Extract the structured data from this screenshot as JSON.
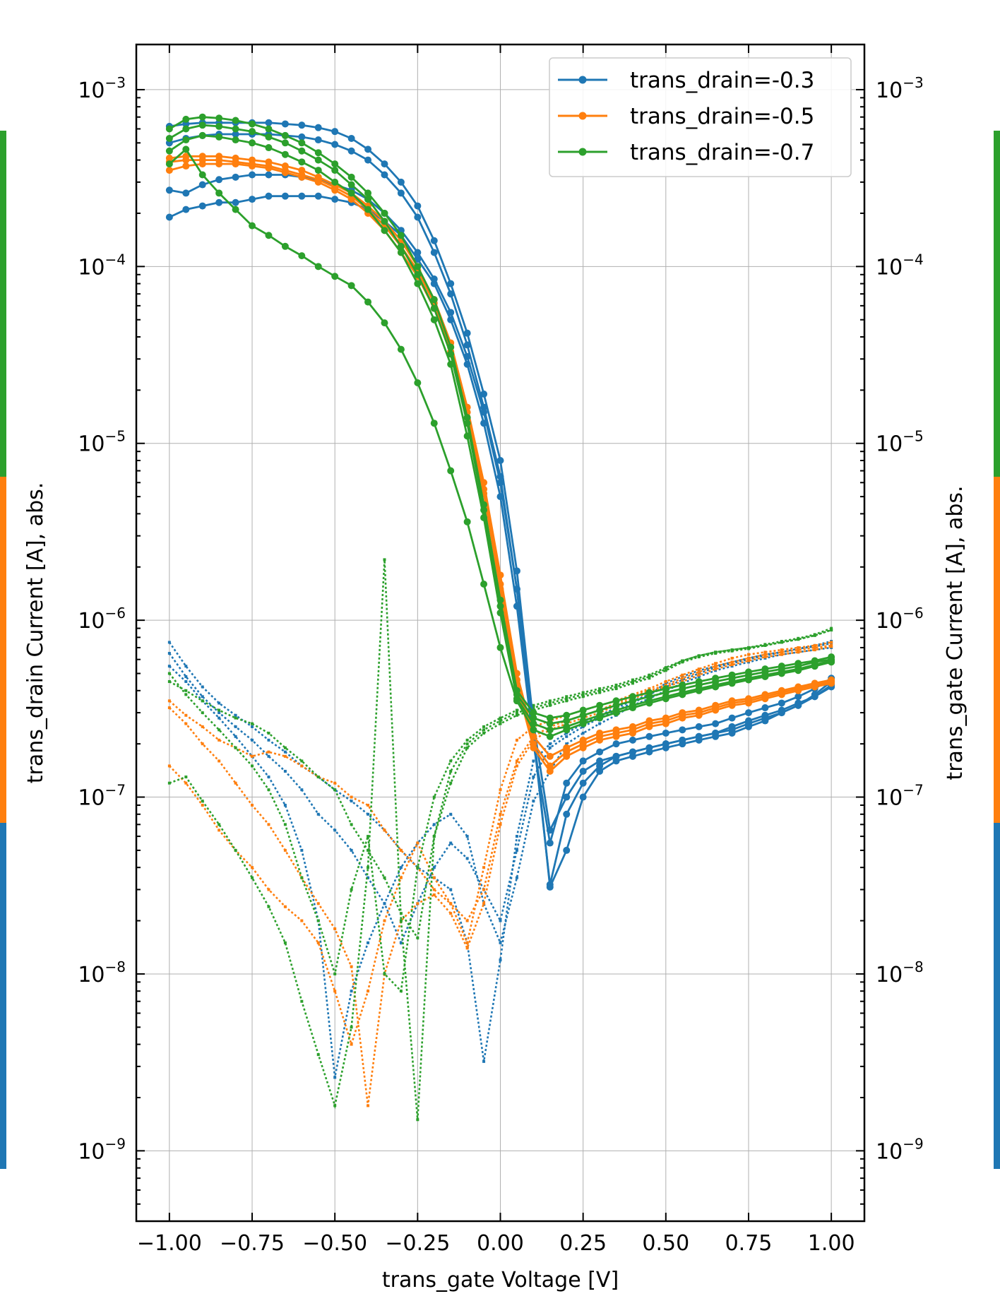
{
  "chart_data": {
    "type": "line",
    "title": "",
    "xlabel": "trans_gate Voltage [V]",
    "ylabel": "trans_drain Current [A], abs.",
    "ylabel_right": "trans_gate Current [A], abs.",
    "xlim": [
      -1.1,
      1.1
    ],
    "ylim": [
      4e-10,
      0.0018
    ],
    "yscale": "log",
    "grid": true,
    "legend_position": "top-right",
    "x_ticks": [
      "−1.00",
      "−0.75",
      "−0.50",
      "−0.25",
      "0.00",
      "0.25",
      "0.50",
      "0.75",
      "1.00"
    ],
    "x_tick_values": [
      -1.0,
      -0.75,
      -0.5,
      -0.25,
      0.0,
      0.25,
      0.5,
      0.75,
      1.0
    ],
    "y_tick_exponents": [
      "−9",
      "−8",
      "−7",
      "−6",
      "−5",
      "−4",
      "−3"
    ],
    "y_tick_values": [
      1e-09,
      1e-08,
      1e-07,
      1e-06,
      1e-05,
      0.0001,
      0.001
    ],
    "y_tick_base": "10",
    "x_sweep": [
      -1.0,
      -0.95,
      -0.9,
      -0.85,
      -0.8,
      -0.75,
      -0.7,
      -0.65,
      -0.6,
      -0.55,
      -0.5,
      -0.45,
      -0.4,
      -0.35,
      -0.3,
      -0.25,
      -0.2,
      -0.15,
      -0.1,
      -0.05,
      0.0,
      0.05,
      0.1,
      0.15,
      0.2,
      0.25,
      0.3,
      0.35,
      0.4,
      0.45,
      0.5,
      0.55,
      0.6,
      0.65,
      0.7,
      0.75,
      0.8,
      0.85,
      0.9,
      0.95,
      1.0
    ],
    "series": [
      {
        "name": "trans_drain=-0.3",
        "color": "#1f77b4",
        "drain_curves": [
          [
            0.00062,
            0.00064,
            0.00065,
            0.00065,
            0.00065,
            0.00065,
            0.00065,
            0.00064,
            0.00063,
            0.00061,
            0.00058,
            0.00053,
            0.00046,
            0.00038,
            0.0003,
            0.00022,
            0.00014,
            8e-05,
            4.2e-05,
            1.9e-05,
            8e-06,
            1.9e-06,
            2.6e-07,
            6.5e-08,
            1e-07,
            1.4e-07,
            1.6e-07,
            1.7e-07,
            1.8e-07,
            1.9e-07,
            2e-07,
            2.1e-07,
            2.2e-07,
            2.3e-07,
            2.5e-07,
            2.7e-07,
            2.9e-07,
            3.1e-07,
            3.4e-07,
            3.7e-07,
            4.2e-07
          ],
          [
            0.0005,
            0.00053,
            0.00055,
            0.00056,
            0.00056,
            0.00056,
            0.00056,
            0.00055,
            0.00054,
            0.00052,
            0.00049,
            0.00045,
            0.0004,
            0.00033,
            0.00026,
            0.00019,
            0.00012,
            7e-05,
            3.6e-05,
            1.6e-05,
            6.5e-06,
            1.5e-06,
            2.2e-07,
            3.2e-08,
            8e-08,
            1.2e-07,
            1.5e-07,
            1.7e-07,
            1.8e-07,
            1.9e-07,
            2e-07,
            2.1e-07,
            2.2e-07,
            2.3e-07,
            2.4e-07,
            2.6e-07,
            2.8e-07,
            3e-07,
            3.3e-07,
            3.7e-07,
            4.3e-07
          ],
          [
            0.00027,
            0.00026,
            0.00029,
            0.00031,
            0.00032,
            0.00033,
            0.00033,
            0.00033,
            0.00032,
            0.00031,
            0.00029,
            0.00027,
            0.00024,
            0.0002,
            0.00016,
            0.00012,
            8.5e-05,
            5.5e-05,
            3.1e-05,
            1.5e-05,
            6e-06,
            1.5e-06,
            2.4e-07,
            3.1e-08,
            5e-08,
            1e-07,
            1.4e-07,
            1.6e-07,
            1.7e-07,
            1.8e-07,
            1.9e-07,
            2e-07,
            2.1e-07,
            2.2e-07,
            2.3e-07,
            2.5e-07,
            2.7e-07,
            3e-07,
            3.3e-07,
            3.8e-07,
            4.5e-07
          ],
          [
            0.00019,
            0.00021,
            0.00022,
            0.00023,
            0.00023,
            0.00024,
            0.00025,
            0.00025,
            0.00025,
            0.00025,
            0.00024,
            0.00023,
            0.00021,
            0.00018,
            0.00015,
            0.00011,
            8e-05,
            5e-05,
            2.8e-05,
            1.3e-05,
            5e-06,
            1.2e-06,
            2e-07,
            5.5e-08,
            1.2e-07,
            1.6e-07,
            1.8e-07,
            2e-07,
            2.1e-07,
            2.2e-07,
            2.3e-07,
            2.4e-07,
            2.5e-07,
            2.6e-07,
            2.8e-07,
            3e-07,
            3.2e-07,
            3.4e-07,
            3.7e-07,
            4.1e-07,
            4.7e-07
          ]
        ],
        "gate_curves": [
          [
            7.5e-07,
            5.5e-07,
            4.2e-07,
            3.4e-07,
            2.9e-07,
            2.5e-07,
            2.1e-07,
            1.8e-07,
            1.5e-07,
            1.3e-07,
            1.1e-07,
            9.5e-08,
            8e-08,
            6.5e-08,
            5e-08,
            4e-08,
            3.5e-08,
            3e-08,
            1.5e-08,
            3.2e-09,
            1.2e-08,
            6e-08,
            1.6e-07,
            2e-07,
            2.3e-07,
            2.6e-07,
            2.9e-07,
            3.2e-07,
            3.5e-07,
            3.8e-07,
            4.2e-07,
            4.6e-07,
            5e-07,
            5.4e-07,
            5.7e-07,
            6e-07,
            6.3e-07,
            6.6e-07,
            6.9e-07,
            7.2e-07,
            7.6e-07
          ],
          [
            6.5e-07,
            4.8e-07,
            3.7e-07,
            3e-07,
            2.5e-07,
            2.1e-07,
            1.7e-07,
            1.4e-07,
            1.1e-07,
            8e-08,
            6.5e-08,
            5e-08,
            3.5e-08,
            2.5e-08,
            1.5e-08,
            2.5e-08,
            4e-08,
            5.5e-08,
            4.5e-08,
            3e-08,
            2e-08,
            5e-08,
            1.3e-07,
            1.9e-07,
            2.2e-07,
            2.5e-07,
            2.8e-07,
            3.1e-07,
            3.4e-07,
            3.8e-07,
            4.4e-07,
            4.8e-07,
            5.2e-07,
            5.5e-07,
            5.8e-07,
            6.1e-07,
            6.4e-07,
            6.6e-07,
            6.9e-07,
            7.1e-07,
            7.4e-07
          ],
          [
            5.5e-07,
            4.5e-07,
            3.5e-07,
            2.8e-07,
            2.2e-07,
            1.7e-07,
            1.3e-07,
            9e-08,
            5e-08,
            2e-08,
            2.6e-09,
            8e-09,
            1.5e-08,
            2.5e-08,
            4e-08,
            5.5e-08,
            7e-08,
            8e-08,
            6e-08,
            2.5e-08,
            1.5e-08,
            3.5e-08,
            9.5e-08,
            1.4e-07,
            2e-07,
            2.3e-07,
            2.6e-07,
            2.9e-07,
            3.3e-07,
            3.6e-07,
            4e-07,
            4.4e-07,
            4.8e-07,
            5.2e-07,
            5.5e-07,
            5.8e-07,
            6.1e-07,
            6.4e-07,
            6.6e-07,
            6.8e-07,
            7e-07
          ]
        ]
      },
      {
        "name": "trans_drain=-0.5",
        "color": "#ff7f0e",
        "drain_curves": [
          [
            0.00041,
            0.00042,
            0.00042,
            0.00042,
            0.00041,
            0.0004,
            0.00039,
            0.00037,
            0.00035,
            0.00032,
            0.00029,
            0.00026,
            0.00022,
            0.00018,
            0.00014,
            0.0001,
            6.5e-05,
            3.7e-05,
            1.6e-05,
            6e-06,
            1.8e-06,
            5e-07,
            2.2e-07,
            1.7e-07,
            1.9e-07,
            2.1e-07,
            2.3e-07,
            2.4e-07,
            2.5e-07,
            2.7e-07,
            2.8e-07,
            3e-07,
            3.1e-07,
            3.3e-07,
            3.5e-07,
            3.6e-07,
            3.8e-07,
            4e-07,
            4.2e-07,
            4.4e-07,
            4.6e-07
          ],
          [
            0.00039,
            0.0004,
            0.0004,
            0.0004,
            0.00039,
            0.00038,
            0.00037,
            0.00035,
            0.00033,
            0.00031,
            0.00028,
            0.00025,
            0.00021,
            0.00017,
            0.00013,
            9.5e-05,
            6.2e-05,
            3.5e-05,
            1.5e-05,
            5.5e-06,
            1.6e-06,
            4.6e-07,
            2e-07,
            1.5e-07,
            1.8e-07,
            2e-07,
            2.2e-07,
            2.3e-07,
            2.4e-07,
            2.6e-07,
            2.7e-07,
            2.9e-07,
            3e-07,
            3.2e-07,
            3.4e-07,
            3.5e-07,
            3.7e-07,
            3.9e-07,
            4.1e-07,
            4.3e-07,
            4.5e-07
          ],
          [
            0.00035,
            0.00037,
            0.00038,
            0.00038,
            0.00038,
            0.00037,
            0.00036,
            0.00034,
            0.00032,
            0.0003,
            0.00027,
            0.00024,
            0.0002,
            0.00016,
            0.00012,
            8.8e-05,
            5.8e-05,
            3.3e-05,
            1.4e-05,
            5.2e-06,
            1.5e-06,
            4.3e-07,
            1.9e-07,
            1.4e-07,
            1.7e-07,
            1.9e-07,
            2.1e-07,
            2.2e-07,
            2.3e-07,
            2.5e-07,
            2.6e-07,
            2.8e-07,
            2.9e-07,
            3.1e-07,
            3.3e-07,
            3.4e-07,
            3.6e-07,
            3.8e-07,
            4e-07,
            4.2e-07,
            4.4e-07
          ]
        ],
        "gate_curves": [
          [
            3.5e-07,
            2.9e-07,
            2.5e-07,
            2.1e-07,
            1.9e-07,
            1.7e-07,
            1.8e-07,
            1.7e-07,
            1.5e-07,
            1.3e-07,
            1.2e-07,
            1e-07,
            9e-08,
            6.5e-08,
            5e-08,
            4e-08,
            3e-08,
            2.5e-08,
            1.5e-08,
            4e-08,
            1.1e-07,
            2.1e-07,
            2.5e-07,
            2.7e-07,
            2.9e-07,
            3.1e-07,
            3.3e-07,
            3.5e-07,
            3.8e-07,
            4.1e-07,
            4.5e-07,
            4.9e-07,
            5.3e-07,
            5.7e-07,
            6.1e-07,
            6.4e-07,
            6.6e-07,
            6.8e-07,
            7e-07,
            7.2e-07,
            7.5e-07
          ],
          [
            1.5e-07,
            1.2e-07,
            9e-08,
            6.5e-08,
            5e-08,
            4e-08,
            3e-08,
            2.4e-08,
            2e-08,
            1.5e-08,
            8e-09,
            4e-09,
            8e-09,
            2e-08,
            3.5e-08,
            5.5e-08,
            3.5e-08,
            2.5e-08,
            2e-08,
            3e-08,
            8e-08,
            1.6e-07,
            2.2e-07,
            2.5e-07,
            2.7e-07,
            2.9e-07,
            3.1e-07,
            3.4e-07,
            3.7e-07,
            4e-07,
            4.3e-07,
            4.7e-07,
            5.1e-07,
            5.5e-07,
            5.8e-07,
            6.1e-07,
            6.4e-07,
            6.6e-07,
            6.8e-07,
            7e-07,
            7.2e-07
          ],
          [
            3.2e-07,
            2.6e-07,
            2e-07,
            1.6e-07,
            1.2e-07,
            9e-08,
            7e-08,
            5e-08,
            3.5e-08,
            2.5e-08,
            1.8e-08,
            1.1e-08,
            1.8e-09,
            1e-08,
            2e-08,
            2.5e-08,
            2.8e-08,
            2.2e-08,
            1.4e-08,
            2.5e-08,
            7e-08,
            1.5e-07,
            2.1e-07,
            2.4e-07,
            2.6e-07,
            2.8e-07,
            3e-07,
            3.3e-07,
            3.6e-07,
            3.9e-07,
            4.2e-07,
            4.5e-07,
            4.9e-07,
            5.3e-07,
            5.6e-07,
            5.9e-07,
            6.2e-07,
            6.4e-07,
            6.6e-07,
            6.8e-07,
            7.1e-07
          ]
        ]
      },
      {
        "name": "trans_drain=-0.7",
        "color": "#2ca02c",
        "drain_curves": [
          [
            0.0006,
            0.00068,
            0.0007,
            0.00069,
            0.00067,
            0.00064,
            0.0006,
            0.00055,
            0.0005,
            0.00044,
            0.00038,
            0.00032,
            0.00026,
            0.0002,
            0.00015,
            0.0001,
            6.5e-05,
            3.5e-05,
            1.4e-05,
            4.5e-06,
            1.3e-06,
            4e-07,
            3e-07,
            2.8e-07,
            2.9e-07,
            3.1e-07,
            3.3e-07,
            3.5e-07,
            3.7e-07,
            3.9e-07,
            4.1e-07,
            4.3e-07,
            4.5e-07,
            4.7e-07,
            4.9e-07,
            5.1e-07,
            5.3e-07,
            5.5e-07,
            5.7e-07,
            5.9e-07,
            6.2e-07
          ],
          [
            0.00053,
            0.0006,
            0.00063,
            0.00062,
            0.0006,
            0.00058,
            0.00054,
            0.0005,
            0.00045,
            0.0004,
            0.00035,
            0.00029,
            0.00024,
            0.00018,
            0.00013,
            9e-05,
            5.8e-05,
            3.2e-05,
            1.3e-05,
            4.2e-06,
            1.2e-06,
            3.8e-07,
            2.8e-07,
            2.6e-07,
            2.7e-07,
            2.9e-07,
            3.1e-07,
            3.3e-07,
            3.5e-07,
            3.7e-07,
            3.9e-07,
            4.1e-07,
            4.3e-07,
            4.5e-07,
            4.7e-07,
            4.9e-07,
            5.1e-07,
            5.3e-07,
            5.5e-07,
            5.8e-07,
            6e-07
          ],
          [
            0.00045,
            0.00052,
            0.00055,
            0.00054,
            0.00052,
            0.0005,
            0.00047,
            0.00043,
            0.00039,
            0.00035,
            0.0003,
            0.00026,
            0.00021,
            0.00016,
            0.00012,
            8e-05,
            5e-05,
            2.8e-05,
            1.1e-05,
            3.8e-06,
            1.1e-06,
            3.6e-07,
            2.6e-07,
            2.4e-07,
            2.5e-07,
            2.7e-07,
            2.9e-07,
            3.1e-07,
            3.3e-07,
            3.5e-07,
            3.7e-07,
            3.9e-07,
            4.1e-07,
            4.3e-07,
            4.5e-07,
            4.7e-07,
            4.9e-07,
            5.1e-07,
            5.3e-07,
            5.6e-07,
            5.9e-07
          ],
          [
            0.00038,
            0.00046,
            0.00033,
            0.00026,
            0.00021,
            0.00017,
            0.00015,
            0.00013,
            0.000115,
            0.0001,
            8.8e-05,
            7.8e-05,
            6.3e-05,
            4.8e-05,
            3.4e-05,
            2.2e-05,
            1.3e-05,
            7e-06,
            3.6e-06,
            1.6e-06,
            7e-07,
            3.5e-07,
            2.4e-07,
            2.2e-07,
            2.4e-07,
            2.6e-07,
            2.8e-07,
            3e-07,
            3.2e-07,
            3.4e-07,
            3.6e-07,
            3.8e-07,
            4e-07,
            4.2e-07,
            4.4e-07,
            4.6e-07,
            4.8e-07,
            5e-07,
            5.2e-07,
            5.5e-07,
            5.8e-07
          ]
        ],
        "gate_curves": [
          [
            4.5e-07,
            4e-07,
            3.5e-07,
            3.1e-07,
            2.8e-07,
            2.6e-07,
            2.3e-07,
            1.9e-07,
            1.6e-07,
            1.3e-07,
            1.1e-07,
            7e-08,
            5e-08,
            3.5e-08,
            2.2e-08,
            1.6e-08,
            6e-08,
            1.2e-07,
            1.9e-07,
            2.3e-07,
            2.6e-07,
            2.9e-07,
            3.1e-07,
            3.3e-07,
            3.5e-07,
            3.7e-07,
            3.9e-07,
            4.1e-07,
            4.4e-07,
            4.7e-07,
            5.2e-07,
            5.8e-07,
            6.2e-07,
            6.5e-07,
            6.7e-07,
            6.9e-07,
            7.2e-07,
            7.5e-07,
            7.8e-07,
            8.2e-07,
            8.8e-07
          ],
          [
            1.2e-07,
            1.3e-07,
            9.5e-08,
            7e-08,
            5e-08,
            3.5e-08,
            2.4e-08,
            1.5e-08,
            7e-09,
            3.5e-09,
            1.8e-09,
            5e-09,
            4e-08,
            2.2e-06,
            2e-08,
            1.5e-09,
            6e-08,
            1.4e-07,
            2e-07,
            2.4e-07,
            2.7e-07,
            3e-07,
            3.2e-07,
            3.4e-07,
            3.6e-07,
            3.8e-07,
            4e-07,
            4.2e-07,
            4.5e-07,
            4.8e-07,
            5.3e-07,
            5.9e-07,
            6.3e-07,
            6.6e-07,
            6.8e-07,
            7e-07,
            7.3e-07,
            7.6e-07,
            7.9e-07,
            8.3e-07,
            9e-07
          ],
          [
            5e-07,
            3.8e-07,
            3e-07,
            2.4e-07,
            1.9e-07,
            1.5e-07,
            1.1e-07,
            7e-08,
            3.5e-08,
            2e-08,
            1e-08,
            3e-08,
            6e-08,
            1e-08,
            8e-09,
            4e-08,
            1e-07,
            1.6e-07,
            2.1e-07,
            2.5e-07,
            2.8e-07,
            3.1e-07,
            3.3e-07,
            3.5e-07,
            3.7e-07,
            3.9e-07,
            4.1e-07,
            4.3e-07,
            4.6e-07,
            4.9e-07,
            5.4e-07,
            5.9e-07,
            6.3e-07,
            6.6e-07,
            6.8e-07,
            7e-07,
            7.2e-07,
            7.5e-07,
            7.8e-07,
            8.2e-07,
            8.8e-07
          ]
        ]
      }
    ]
  }
}
